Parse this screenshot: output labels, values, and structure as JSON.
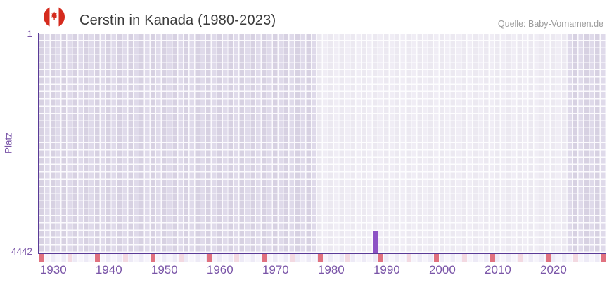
{
  "header": {
    "flag_icon": "canada-flag-icon",
    "title": "Cerstin in Kanada (1980-2023)",
    "source": "Quelle: Baby-Vornamen.de"
  },
  "chart_data": {
    "type": "bar",
    "title": "Cerstin in Kanada (1980-2023)",
    "xlabel": "",
    "ylabel": "Platz",
    "y_axis": {
      "top_label": "1",
      "bottom_label": "4442",
      "best_rank": 1,
      "worst_rank": 4442,
      "inverted": true
    },
    "x_axis": {
      "year_min": 1927.5,
      "year_max": 2029.5,
      "tick_labels": [
        "1930",
        "1940",
        "1950",
        "1960",
        "1970",
        "1980",
        "1990",
        "2000",
        "2010",
        "2020"
      ]
    },
    "data_period_band": {
      "from_year": 1977.5,
      "to_year": 2022.5
    },
    "bars": [
      {
        "year": 1988,
        "rank": 4001
      }
    ],
    "sub_axis_marks": [
      {
        "year": 1928,
        "tone": "red"
      },
      {
        "year": 1933,
        "tone": "pink"
      },
      {
        "year": 1938,
        "tone": "red"
      },
      {
        "year": 1943,
        "tone": "pink"
      },
      {
        "year": 1948,
        "tone": "red"
      },
      {
        "year": 1953,
        "tone": "pink"
      },
      {
        "year": 1958,
        "tone": "red"
      },
      {
        "year": 1963,
        "tone": "pink"
      },
      {
        "year": 1968,
        "tone": "red"
      },
      {
        "year": 1973,
        "tone": "pink"
      },
      {
        "year": 1978,
        "tone": "red"
      },
      {
        "year": 1983,
        "tone": "pink"
      },
      {
        "year": 1989,
        "tone": "red"
      },
      {
        "year": 1994,
        "tone": "pink"
      },
      {
        "year": 1999,
        "tone": "red"
      },
      {
        "year": 2004,
        "tone": "pink"
      },
      {
        "year": 2009,
        "tone": "red"
      },
      {
        "year": 2014,
        "tone": "pink"
      },
      {
        "year": 2019,
        "tone": "red"
      },
      {
        "year": 2024,
        "tone": "pink"
      },
      {
        "year": 2029,
        "tone": "red"
      }
    ],
    "colors": {
      "bar": "#8d53c5",
      "axis": "#5a3b97",
      "tick_text": "#7a55a8",
      "mark_red": "#e0717f",
      "mark_pink": "#f3d9e1",
      "flag_red": "#d52b1e"
    },
    "legend": null,
    "grid": true
  }
}
